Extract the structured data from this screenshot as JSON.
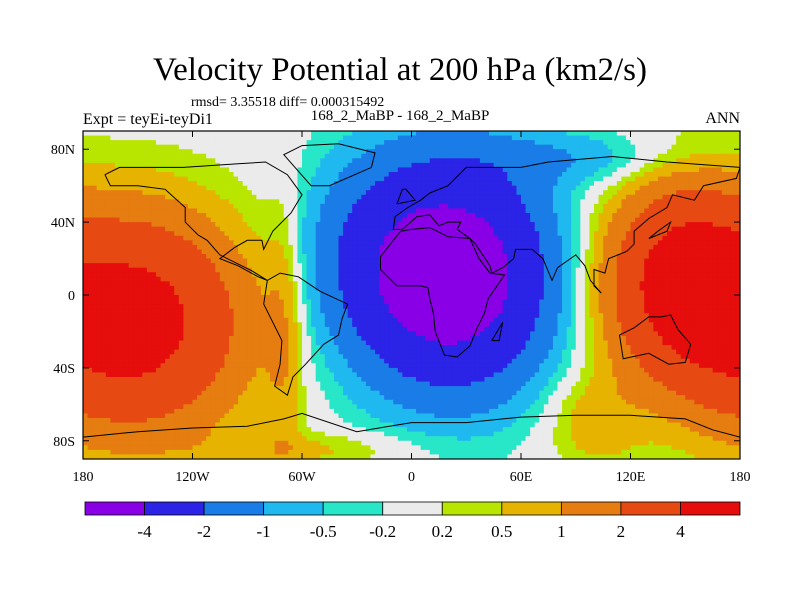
{
  "chart_data": {
    "type": "heatmap",
    "title": "Velocity Potential at 200 hPa (km2/s)",
    "stats_line": "rmsd= 3.35518  diff= 0.000315492",
    "subtitle": "168_2_MaBP - 168_2_MaBP",
    "left_label": "Expt = teyEi-teyDi1",
    "right_label": "ANN",
    "xlabel": "",
    "ylabel": "",
    "xlim": [
      -180,
      180
    ],
    "ylim": [
      -90,
      90
    ],
    "x_ticks": [
      {
        "value": -180,
        "label": "180"
      },
      {
        "value": -120,
        "label": "120W"
      },
      {
        "value": -60,
        "label": "60W"
      },
      {
        "value": 0,
        "label": "0"
      },
      {
        "value": 60,
        "label": "60E"
      },
      {
        "value": 120,
        "label": "120E"
      },
      {
        "value": 180,
        "label": "180"
      }
    ],
    "y_ticks": [
      {
        "value": 80,
        "label": "80N"
      },
      {
        "value": 40,
        "label": "40N"
      },
      {
        "value": 0,
        "label": "0"
      },
      {
        "value": -40,
        "label": "40S"
      },
      {
        "value": -80,
        "label": "80S"
      }
    ],
    "contour_levels": [
      -4,
      -2,
      -1,
      -0.5,
      -0.2,
      0.2,
      0.5,
      1,
      2,
      4
    ],
    "colorbar_labels": [
      "-4",
      "-2",
      "-1",
      "-0.5",
      "-0.2",
      "0.2",
      "0.5",
      "1",
      "2",
      "4"
    ],
    "colors": [
      "#8a00e6",
      "#2b23e6",
      "#1a7ce6",
      "#1fb9f0",
      "#28e6c8",
      "#ebebeb",
      "#b8e600",
      "#e6b400",
      "#e67d10",
      "#e64a12",
      "#e60d0d"
    ],
    "field": {
      "description": "Annual-mean velocity potential anomaly; minimum centred near 20E, 10N; maxima over central Pacific",
      "min_center": {
        "lon": 20,
        "lat": 10,
        "value": -4.5
      },
      "max_centers": [
        {
          "lon": -160,
          "lat": -20,
          "value": 4.5
        },
        {
          "lon": 150,
          "lat": 5,
          "value": 4.5
        }
      ]
    }
  }
}
